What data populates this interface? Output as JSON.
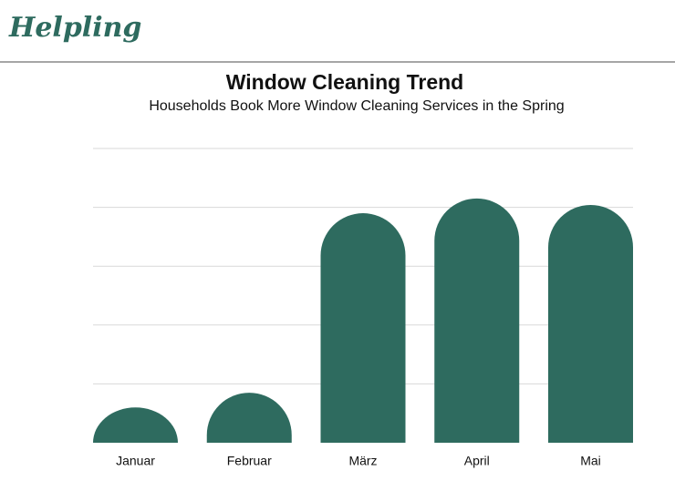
{
  "header": {
    "logo": "Helpling"
  },
  "chart_data": {
    "type": "bar",
    "title": "Window Cleaning Trend",
    "subtitle": "Households Book More Window Cleaning Services in the Spring",
    "categories": [
      "Januar",
      "Februar",
      "März",
      "April",
      "Mai"
    ],
    "values": [
      0.6,
      0.85,
      3.9,
      4.15,
      4.04
    ],
    "color": "#2e6b5f",
    "ylim": [
      0,
      5
    ],
    "yticks": [
      1,
      2,
      3,
      4,
      5
    ],
    "grid": true
  }
}
